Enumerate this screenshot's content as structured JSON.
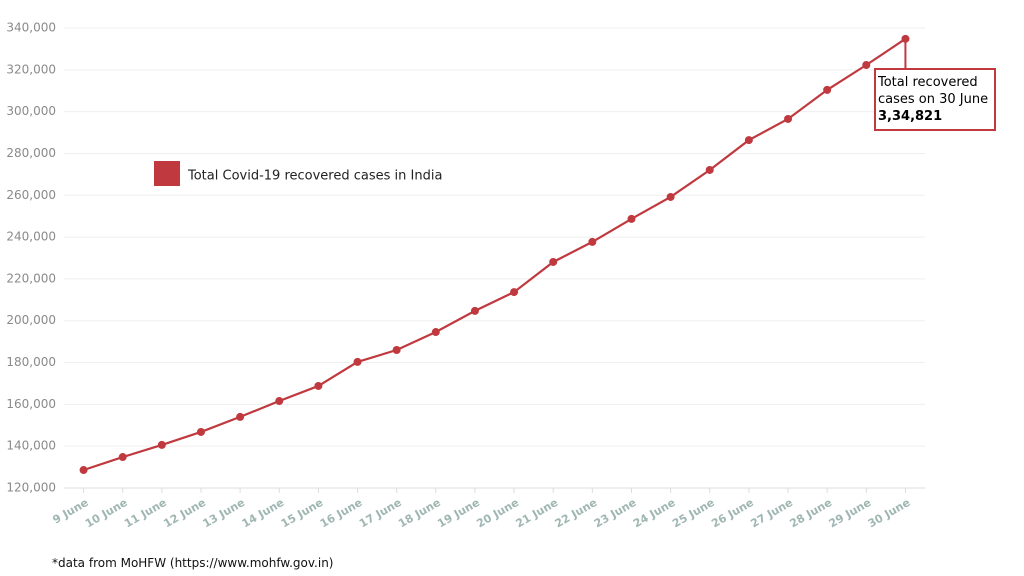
{
  "chart_data": {
    "type": "line",
    "categories": [
      "9 June",
      "10 June",
      "11 June",
      "12 June",
      "13 June",
      "14 June",
      "15 June",
      "16 June",
      "17 June",
      "18 June",
      "19 June",
      "20 June",
      "21 June",
      "22 June",
      "23 June",
      "24 June",
      "25 June",
      "26 June",
      "27 June",
      "28 June",
      "29 June",
      "30 June"
    ],
    "series": [
      {
        "name": "Total Covid-19 recovered cases in India",
        "color": "#c0393f",
        "values": [
          128600,
          134800,
          140600,
          146800,
          154000,
          161600,
          168800,
          180300,
          186000,
          194600,
          204700,
          213700,
          228100,
          237700,
          248700,
          259200,
          272100,
          286400,
          296500,
          310400,
          322300,
          334821
        ]
      }
    ],
    "ylim": [
      120000,
      340000
    ],
    "yticks": [
      {
        "value": 120000,
        "label": "120,000"
      },
      {
        "value": 140000,
        "label": "140,000"
      },
      {
        "value": 160000,
        "label": "160,000"
      },
      {
        "value": 180000,
        "label": "180,000"
      },
      {
        "value": 200000,
        "label": "200,000"
      },
      {
        "value": 220000,
        "label": "220,000"
      },
      {
        "value": 240000,
        "label": "240,000"
      },
      {
        "value": 260000,
        "label": "260,000"
      },
      {
        "value": 280000,
        "label": "280,000"
      },
      {
        "value": 300000,
        "label": "300,000"
      },
      {
        "value": 320000,
        "label": "320,000"
      },
      {
        "value": 340000,
        "label": "340,000"
      }
    ],
    "grid": true,
    "annotation": {
      "text": "Total recovered cases on 30 June",
      "value_label": "3,34,821"
    },
    "source": "*data from MoHFW (https://www.mohfw.gov.in)"
  }
}
